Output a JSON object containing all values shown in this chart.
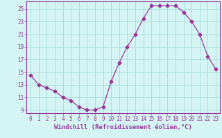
{
  "x": [
    0,
    1,
    2,
    3,
    4,
    5,
    6,
    7,
    8,
    9,
    10,
    11,
    12,
    13,
    14,
    15,
    16,
    17,
    18,
    19,
    20,
    21,
    22,
    23
  ],
  "y": [
    14.5,
    13.0,
    12.5,
    12.0,
    11.0,
    10.5,
    9.5,
    9.0,
    9.0,
    9.5,
    13.5,
    16.5,
    19.0,
    21.0,
    23.5,
    25.5,
    25.5,
    25.5,
    25.5,
    24.5,
    23.0,
    21.0,
    17.5,
    15.5
  ],
  "line_color": "#993399",
  "marker": "D",
  "marker_size": 2.5,
  "bg_color": "#d5f5f5",
  "grid_color": "#aadddd",
  "xlabel": "Windchill (Refroidissement éolien,°C)",
  "xlabel_fontsize": 6.5,
  "xlim": [
    -0.5,
    23.5
  ],
  "ylim": [
    8.5,
    26.2
  ],
  "yticks": [
    9,
    11,
    13,
    15,
    17,
    19,
    21,
    23,
    25
  ],
  "xticks": [
    0,
    1,
    2,
    3,
    4,
    5,
    6,
    7,
    8,
    9,
    10,
    11,
    12,
    13,
    14,
    15,
    16,
    17,
    18,
    19,
    20,
    21,
    22,
    23
  ],
  "tick_fontsize": 5.5,
  "tick_color": "#993399",
  "axis_color": "#993399",
  "spine_color": "#993399"
}
